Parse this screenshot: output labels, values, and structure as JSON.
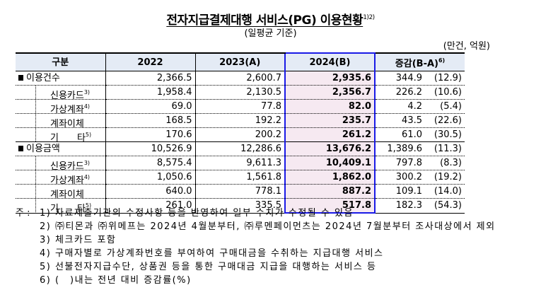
{
  "header": {
    "title": "전자지급결제대행 서비스(PG) 이용현황",
    "title_footnote": "1)2)",
    "subtitle": "(일평균 기준)",
    "unit": "(만건, 억원)"
  },
  "table": {
    "columns": [
      "구분",
      "2022",
      "2023(A)",
      "2024(B)",
      "증감(B-A)"
    ],
    "change_footnote": "6)",
    "highlight_color": "#1a1ae6",
    "groups": [
      {
        "label": "이용건수",
        "values": [
          "2,366.5",
          "2,600.7",
          "2,935.6"
        ],
        "change": "344.9",
        "pct": "(12.9)",
        "rows": [
          {
            "label": "신용카드",
            "fn": "3)",
            "values": [
              "1,958.4",
              "2,130.5",
              "2,356.7"
            ],
            "change": "226.2",
            "pct": "(10.6)"
          },
          {
            "label": "가상계좌",
            "fn": "4)",
            "values": [
              "69.0",
              "77.8",
              "82.0"
            ],
            "change": "4.2",
            "pct": "(5.4)"
          },
          {
            "label": "계좌이체",
            "fn": "",
            "values": [
              "168.5",
              "192.2",
              "235.7"
            ],
            "change": "43.5",
            "pct": "(22.6)"
          },
          {
            "label": "기　　타",
            "fn": "5)",
            "values": [
              "170.6",
              "200.2",
              "261.2"
            ],
            "change": "61.0",
            "pct": "(30.5)"
          }
        ]
      },
      {
        "label": "이용금액",
        "values": [
          "10,526.9",
          "12,286.6",
          "13,676.2"
        ],
        "change": "1,389.6",
        "pct": "(11.3)",
        "rows": [
          {
            "label": "신용카드",
            "fn": "3)",
            "values": [
              "8,575.4",
              "9,611.3",
              "10,409.1"
            ],
            "change": "797.8",
            "pct": "(8.3)"
          },
          {
            "label": "가상계좌",
            "fn": "4)",
            "values": [
              "1,050.6",
              "1,561.8",
              "1,862.0"
            ],
            "change": "300.2",
            "pct": "(19.2)"
          },
          {
            "label": "계좌이체",
            "fn": "",
            "values": [
              "640.0",
              "778.1",
              "887.2"
            ],
            "change": "109.1",
            "pct": "(14.0)"
          },
          {
            "label": "기　　타",
            "fn": "5)",
            "values": [
              "261.0",
              "335.5",
              "517.8"
            ],
            "change": "182.3",
            "pct": "(54.3)"
          }
        ]
      }
    ]
  },
  "notes": {
    "lead": "주 :",
    "items": [
      "1) 자료제출기관의 수정사항 등을 반영하여 일부 수치가 수정될 수 있음",
      "2) ㈜티몬과 ㈜위메프는 2024년 4월분부터, ㈜루멘페이먼츠는 2024년 7월분부터 조사대상에서 제외",
      "3) 체크카드 포함",
      "4) 구매자별로 가상계좌번호를 부여하여 구매대금을 수취하는 지급대행 서비스",
      "5) 선불전자지급수단, 상품권 등을 통한 구매대금 지급을 대행하는 서비스 등",
      "6) (　)내는 전년 대비 증감률(%)"
    ]
  }
}
